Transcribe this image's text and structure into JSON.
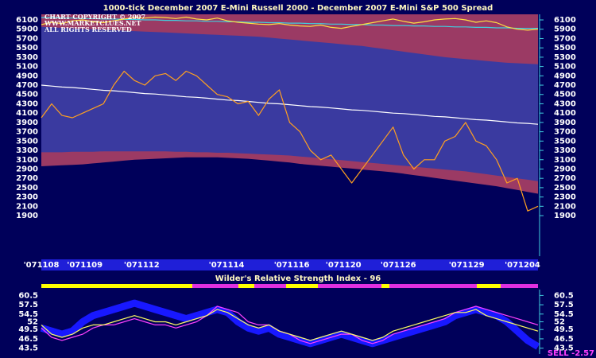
{
  "chart_data": [
    {
      "type": "line",
      "title": "1000-tick December 2007 E-Mini Russell 2000 - December 2007 E-Mini S&P 500 Spread",
      "annotations": [
        "CHART COPYRIGHT © 2007",
        "WWW.MARKETCLUES.NET",
        "ALL RIGHTS RESERVED"
      ],
      "background": "#00005a",
      "plot_color": "#9b3a64",
      "x": [
        0,
        1,
        2,
        3,
        4,
        5,
        6,
        7,
        8,
        9,
        10,
        11,
        12,
        13,
        14,
        15,
        16,
        17,
        18,
        19,
        20,
        21,
        22,
        23,
        24,
        25,
        26,
        27,
        28,
        29,
        30,
        31,
        32,
        33,
        34,
        35,
        36,
        37,
        38,
        39,
        40,
        41,
        42,
        43,
        44,
        45,
        46,
        47,
        48
      ],
      "xlim": [
        0,
        48
      ],
      "xticks": [
        {
          "value": 0,
          "label": "'071108"
        },
        {
          "value": 4.2,
          "label": "'071109"
        },
        {
          "value": 9.7,
          "label": "'071112"
        },
        {
          "value": 17.9,
          "label": "'071114"
        },
        {
          "value": 24.2,
          "label": "'071116"
        },
        {
          "value": 29.2,
          "label": "'071120"
        },
        {
          "value": 34.5,
          "label": "'071126"
        },
        {
          "value": 41.1,
          "label": "'071129"
        },
        {
          "value": 46.5,
          "label": "'071204"
        }
      ],
      "ylim": [
        1030,
        6220
      ],
      "yticks": [
        1900,
        2100,
        2300,
        2500,
        2700,
        2900,
        3100,
        3300,
        3500,
        3700,
        3900,
        4100,
        4300,
        4500,
        4700,
        4900,
        5100,
        5300,
        5500,
        5700,
        5900,
        6100
      ],
      "series": [
        {
          "color": "#3a3aa0",
          "fill": true,
          "values": [
            5950,
            5940,
            5930,
            5920,
            5910,
            5900,
            5890,
            5880,
            5870,
            5860,
            5850,
            5840,
            5830,
            5820,
            5810,
            5800,
            5790,
            5780,
            5770,
            5760,
            5750,
            5740,
            5720,
            5700,
            5680,
            5660,
            5640,
            5620,
            5600,
            5580,
            5560,
            5540,
            5510,
            5480,
            5450,
            5420,
            5390,
            5360,
            5330,
            5300,
            5280,
            5260,
            5240,
            5220,
            5200,
            5180,
            5170,
            5160,
            5150
          ]
        },
        {
          "color": "#9b3a64",
          "fill": true,
          "values": [
            3260,
            3260,
            3260,
            3270,
            3270,
            3270,
            3280,
            3280,
            3280,
            3280,
            3280,
            3280,
            3280,
            3270,
            3270,
            3260,
            3260,
            3250,
            3250,
            3240,
            3230,
            3220,
            3210,
            3200,
            3190,
            3170,
            3150,
            3130,
            3110,
            3090,
            3070,
            3050,
            3030,
            3010,
            2990,
            2970,
            2950,
            2930,
            2910,
            2890,
            2870,
            2850,
            2820,
            2790,
            2760,
            2730,
            2700,
            2670,
            2640
          ]
        },
        {
          "color": "#00005a",
          "fill": true,
          "values": [
            2960,
            2970,
            2980,
            2990,
            3000,
            3020,
            3040,
            3060,
            3080,
            3100,
            3110,
            3120,
            3130,
            3140,
            3150,
            3150,
            3150,
            3150,
            3140,
            3130,
            3120,
            3100,
            3080,
            3060,
            3040,
            3010,
            2990,
            2970,
            2950,
            2930,
            2910,
            2890,
            2870,
            2850,
            2830,
            2800,
            2770,
            2740,
            2710,
            2680,
            2650,
            2620,
            2590,
            2560,
            2530,
            2490,
            2450,
            2410,
            2370
          ]
        },
        {
          "color": "#ffffff",
          "values": [
            4700,
            4680,
            4660,
            4650,
            4630,
            4610,
            4590,
            4580,
            4560,
            4540,
            4520,
            4510,
            4490,
            4470,
            4450,
            4440,
            4420,
            4400,
            4380,
            4370,
            4350,
            4330,
            4310,
            4300,
            4280,
            4260,
            4240,
            4230,
            4210,
            4190,
            4170,
            4160,
            4140,
            4120,
            4100,
            4090,
            4070,
            4050,
            4030,
            4020,
            4000,
            3980,
            3960,
            3950,
            3930,
            3910,
            3890,
            3880,
            3860
          ]
        },
        {
          "color": "#40d0e0",
          "values": [
            6150,
            6150,
            6140,
            6140,
            6130,
            6130,
            6120,
            6120,
            6110,
            6110,
            6100,
            6100,
            6090,
            6090,
            6080,
            6080,
            6070,
            6070,
            6060,
            6060,
            6050,
            6050,
            6040,
            6040,
            6030,
            6030,
            6020,
            6020,
            6010,
            6010,
            6000,
            6000,
            5990,
            5990,
            5980,
            5980,
            5970,
            5970,
            5960,
            5960,
            5950,
            5950,
            5940,
            5940,
            5930,
            5930,
            5920,
            5920,
            5920
          ]
        },
        {
          "color": "#ffe040",
          "values": [
            6000,
            6050,
            6020,
            6080,
            6100,
            6060,
            6040,
            6080,
            6120,
            6150,
            6140,
            6160,
            6150,
            6130,
            6160,
            6120,
            6100,
            6140,
            6080,
            6050,
            6030,
            6010,
            6000,
            6020,
            5990,
            5970,
            5960,
            5990,
            5940,
            5920,
            5960,
            6000,
            6040,
            6080,
            6120,
            6070,
            6030,
            6060,
            6100,
            6120,
            6130,
            6100,
            6050,
            6080,
            6040,
            5950,
            5900,
            5880,
            5900
          ]
        },
        {
          "color": "#ffa020",
          "values": [
            4000,
            4300,
            4050,
            4000,
            4100,
            4200,
            4300,
            4700,
            5000,
            4800,
            4700,
            4900,
            4950,
            4800,
            5000,
            4900,
            4700,
            4500,
            4450,
            4300,
            4350,
            4050,
            4400,
            4600,
            3900,
            3700,
            3300,
            3100,
            3200,
            2900,
            2600,
            2900,
            3200,
            3500,
            3800,
            3200,
            2900,
            3100,
            3100,
            3500,
            3600,
            3900,
            3500,
            3400,
            3100,
            2600,
            2700,
            2000,
            2100
          ]
        }
      ]
    },
    {
      "type": "line",
      "title": "Wilder's Relative Strength Index - 96",
      "annotation": "SELL -2.57",
      "x": [
        0,
        1,
        2,
        3,
        4,
        5,
        6,
        7,
        8,
        9,
        10,
        11,
        12,
        13,
        14,
        15,
        16,
        17,
        18,
        19,
        20,
        21,
        22,
        23,
        24,
        25,
        26,
        27,
        28,
        29,
        30,
        31,
        32,
        33,
        34,
        35,
        36,
        37,
        38,
        39,
        40,
        41,
        42,
        43,
        44,
        45,
        46,
        47,
        48
      ],
      "xlim": [
        0,
        48
      ],
      "ylim": [
        41.6,
        62.4
      ],
      "yticks": [
        43.5,
        46.5,
        49.5,
        52,
        54.5,
        57.5,
        60.5
      ],
      "series": [
        {
          "color": "#1818ff",
          "width": 9,
          "values": [
            50,
            49,
            48,
            49,
            52,
            54,
            55,
            56,
            57,
            58,
            57,
            56,
            55,
            54,
            53,
            54,
            55,
            56,
            55,
            52,
            50,
            49,
            50,
            48,
            47,
            46,
            45,
            46,
            47,
            48,
            47,
            46,
            45,
            46,
            47,
            48,
            49,
            50,
            51,
            52,
            54,
            55,
            56,
            55,
            54,
            52,
            49,
            46,
            44
          ]
        },
        {
          "color": "#ff40ff",
          "width": 1.2,
          "values": [
            50,
            47,
            46,
            47,
            48,
            50,
            51,
            51,
            52,
            53,
            52,
            51,
            51,
            50,
            51,
            52,
            54,
            57,
            56,
            55,
            52,
            51,
            51,
            49,
            48,
            46,
            45,
            46,
            47,
            48,
            48,
            46,
            45,
            46,
            48,
            49,
            50,
            51,
            52,
            53,
            55,
            56,
            57,
            56,
            55,
            54,
            53,
            52,
            51
          ]
        },
        {
          "color": "#ffff60",
          "width": 1.2,
          "values": [
            51,
            48,
            47,
            48,
            50,
            51,
            51,
            52,
            53,
            54,
            53,
            52,
            52,
            51,
            52,
            53,
            54,
            56,
            55,
            53,
            51,
            50,
            51,
            49,
            48,
            47,
            46,
            47,
            48,
            49,
            48,
            47,
            46,
            47,
            49,
            50,
            51,
            52,
            53,
            54,
            55,
            55,
            56,
            54,
            53,
            52,
            51,
            50,
            49
          ]
        }
      ]
    }
  ]
}
